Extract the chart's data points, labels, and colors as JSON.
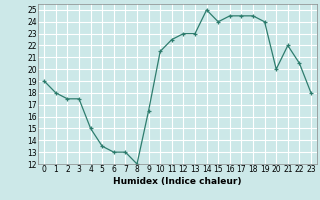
{
  "x": [
    0,
    1,
    2,
    3,
    4,
    5,
    6,
    7,
    8,
    9,
    10,
    11,
    12,
    13,
    14,
    15,
    16,
    17,
    18,
    19,
    20,
    21,
    22,
    23
  ],
  "y": [
    19,
    18,
    17.5,
    17.5,
    15,
    13.5,
    13,
    13,
    12,
    16.5,
    21.5,
    22.5,
    23,
    23,
    25,
    24,
    24.5,
    24.5,
    24.5,
    24,
    20,
    22,
    20.5,
    18
  ],
  "xlabel": "Humidex (Indice chaleur)",
  "xlim": [
    -0.5,
    23.5
  ],
  "ylim": [
    12,
    25.5
  ],
  "yticks": [
    12,
    13,
    14,
    15,
    16,
    17,
    18,
    19,
    20,
    21,
    22,
    23,
    24,
    25
  ],
  "xticks": [
    0,
    1,
    2,
    3,
    4,
    5,
    6,
    7,
    8,
    9,
    10,
    11,
    12,
    13,
    14,
    15,
    16,
    17,
    18,
    19,
    20,
    21,
    22,
    23
  ],
  "line_color": "#2e7d6e",
  "marker": "+",
  "bg_color": "#cce8e8",
  "grid_color": "#ffffff",
  "label_fontsize": 6.5,
  "tick_fontsize": 5.5
}
